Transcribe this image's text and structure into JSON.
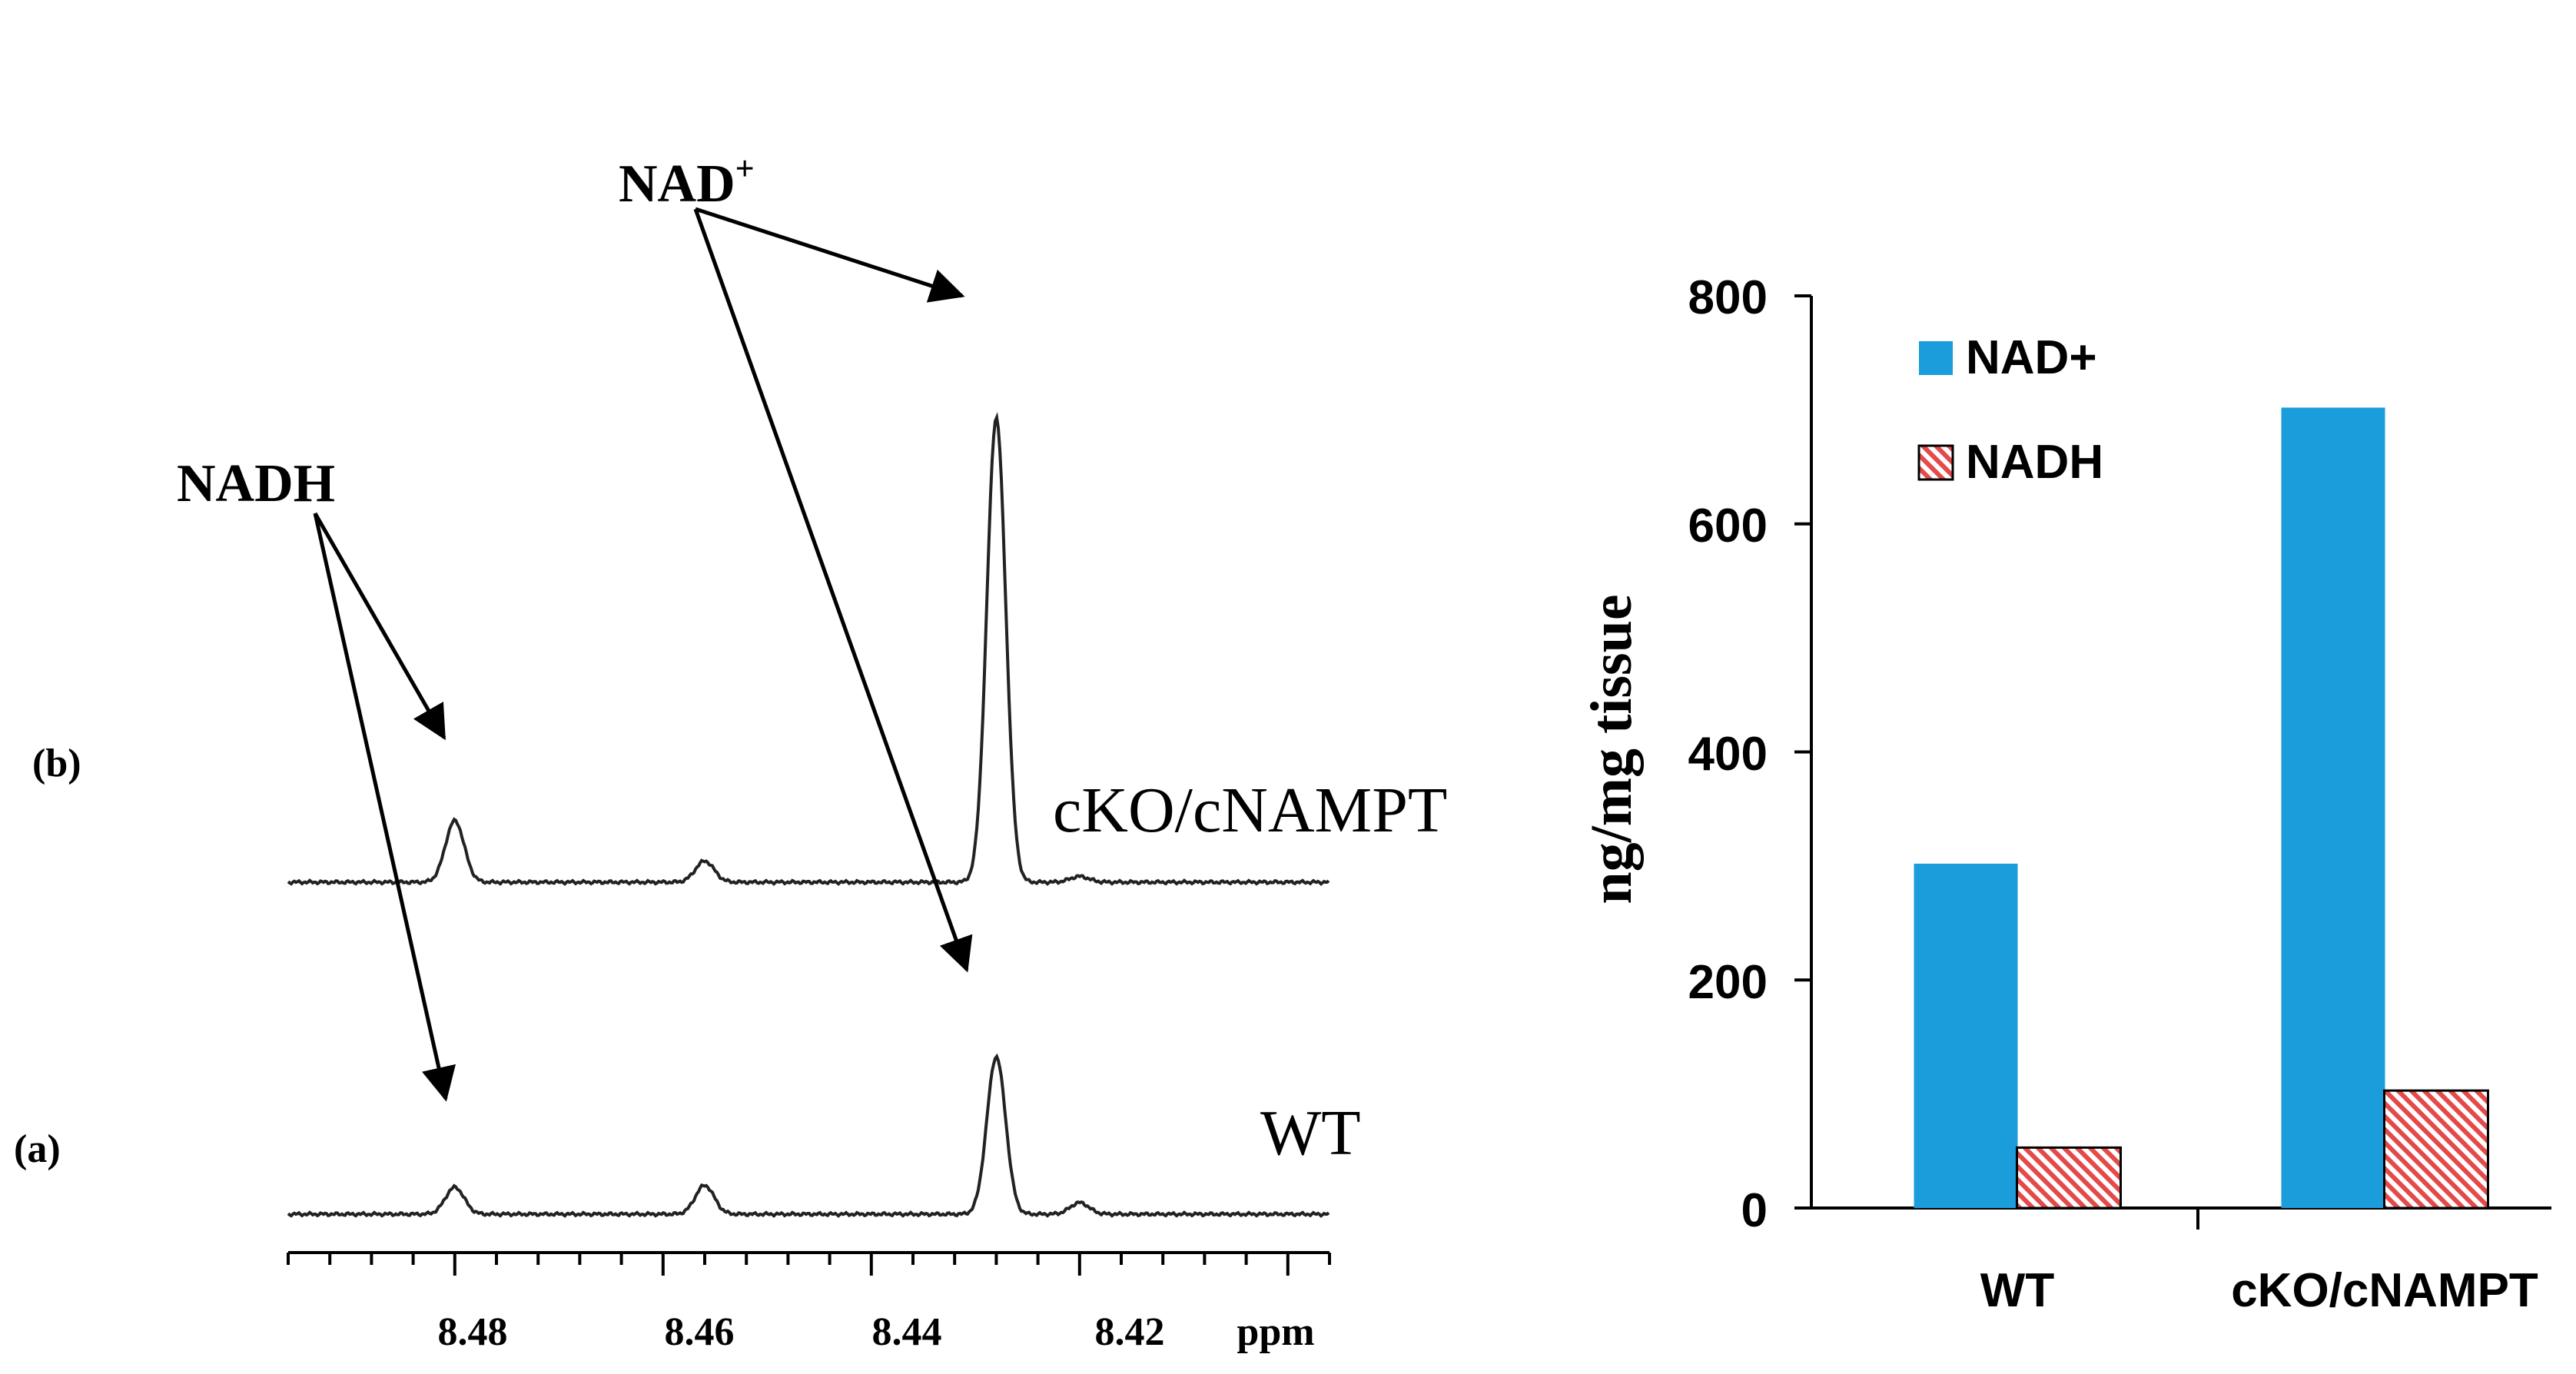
{
  "spectrum": {
    "type": "nmr-spectrum",
    "x_axis": {
      "unit_label": "ppm",
      "ticks": [
        "8.48",
        "8.46",
        "8.44",
        "8.42"
      ],
      "range": [
        8.5,
        8.4
      ]
    },
    "traces": [
      {
        "panel_label": "(b)",
        "sample_label": "cKO/cNAMPT",
        "peaks": [
          {
            "ppm": 8.484,
            "height": 0.32
          },
          {
            "ppm": 8.46,
            "height": 0.11
          },
          {
            "ppm": 8.432,
            "height": 2.42
          },
          {
            "ppm": 8.424,
            "height": 0.03
          }
        ]
      },
      {
        "panel_label": "(a)",
        "sample_label": "WT",
        "peaks": [
          {
            "ppm": 8.484,
            "height": 0.14
          },
          {
            "ppm": 8.46,
            "height": 0.15
          },
          {
            "ppm": 8.432,
            "height": 0.82
          },
          {
            "ppm": 8.424,
            "height": 0.06
          }
        ]
      }
    ],
    "annotations": {
      "nadh_label": "NADH",
      "nad_label": "NAD",
      "nad_superscript": "+"
    }
  },
  "chart_data": {
    "type": "bar",
    "categories": [
      "WT",
      "cKO/cNAMPT"
    ],
    "series": [
      {
        "name": "NAD+",
        "values": [
          302,
          702
        ],
        "color": "#1b9cdb"
      },
      {
        "name": "NADH",
        "values": [
          53,
          103
        ],
        "color": "#e44a4a",
        "pattern": "diagonal-hatch"
      }
    ],
    "ylabel": "ng/mg tissue",
    "ylim": [
      0,
      800
    ],
    "yticks": [
      "0",
      "200",
      "400",
      "600",
      "800"
    ],
    "legend_position": "top-left"
  },
  "colors": {
    "ink": "#000000",
    "trace": "#222222",
    "nad_bar": "#1b9cdb",
    "nadh_bar": "#e44a4a"
  }
}
